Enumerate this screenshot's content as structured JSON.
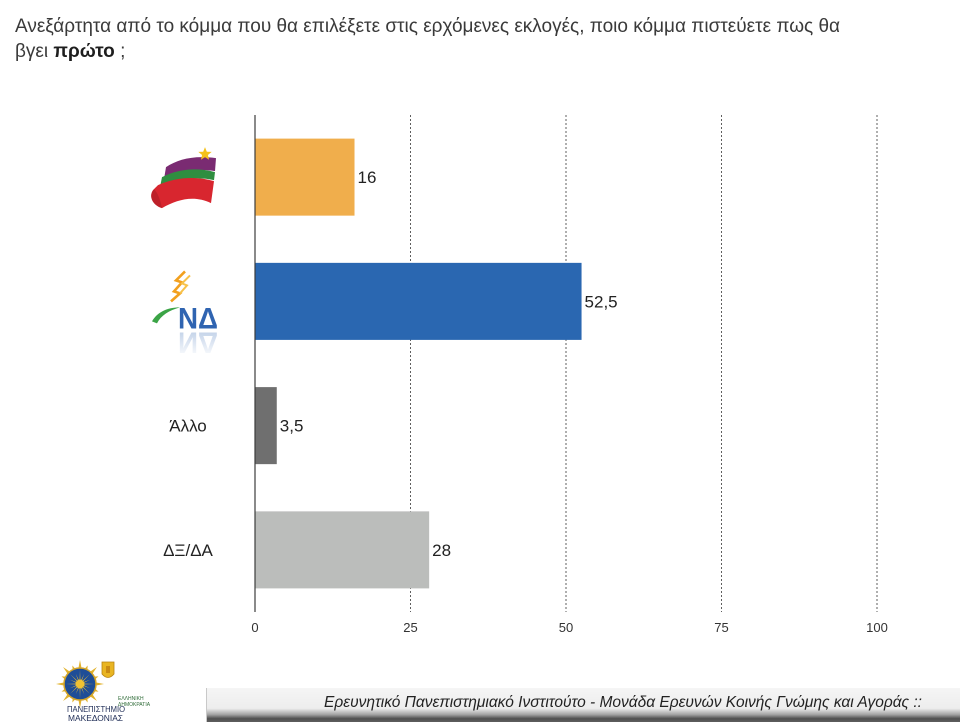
{
  "question": {
    "line1": "Ανεξάρτητα από το κόμμα που θα επιλέξετε στις ερχόμενες εκλογές, ποιο κόμμα πιστεύετε πως θα",
    "line2_before": "βγει",
    "line2_bold": "πρώτο",
    "line2_after": ";"
  },
  "chart_data": {
    "type": "bar",
    "orientation": "horizontal",
    "categories": [
      "",
      "ΝΔ",
      "Άλλο",
      "ΔΞ/ΔΑ"
    ],
    "category_icons": [
      "syriza-logo",
      "nd-logo",
      "",
      ""
    ],
    "values": [
      16,
      52.5,
      3.5,
      28
    ],
    "data_labels": [
      "16",
      "52,5",
      "3,5",
      "28"
    ],
    "colors": [
      "#F0AE4C",
      "#2A67B1",
      "#6F6F6F",
      "#BBBDBB"
    ],
    "xlim": [
      0,
      100
    ],
    "xticks": [
      0,
      25,
      50,
      75,
      100
    ],
    "xtick_labels": [
      "0",
      "25",
      "50",
      "75",
      "100"
    ],
    "grid": true,
    "legend": "none"
  },
  "footer": {
    "logo_small_line1": "ΕΛΛΗΝΙΚΗ",
    "logo_small_line2": "ΔΗΜΟΚΡΑΤΙΑ",
    "logo_line1": "ΠΑΝΕΠΙΣΤΗΜΙΟ",
    "logo_line2": "ΜΑΚΕΔΟΝΙΑΣ",
    "caption": "Ερευνητικό Πανεπιστημιακό Ινστιτούτο - Μονάδα Ερευνών Κοινής Γνώμης και Αγοράς ::"
  }
}
